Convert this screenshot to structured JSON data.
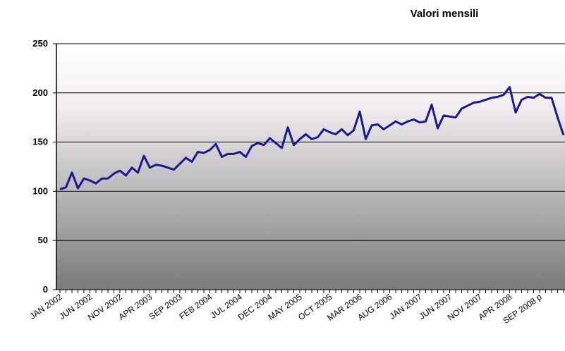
{
  "chart_data": {
    "type": "line",
    "title": "Valori mensili",
    "categories": [
      "JAN 2002",
      null,
      null,
      null,
      null,
      "JUN 2002",
      null,
      null,
      null,
      null,
      "NOV 2002",
      null,
      null,
      null,
      null,
      "APR 2003",
      null,
      null,
      null,
      null,
      "SEP 2003",
      null,
      null,
      null,
      null,
      "FEB 2004",
      null,
      null,
      null,
      null,
      "JUL 2004",
      null,
      null,
      null,
      null,
      "DEC 2004",
      null,
      null,
      null,
      null,
      "MAY 2005",
      null,
      null,
      null,
      null,
      "OCT 2005",
      null,
      null,
      null,
      null,
      "MAR 2006",
      null,
      null,
      null,
      null,
      "AUG 2006",
      null,
      null,
      null,
      null,
      "JAN 2007",
      null,
      null,
      null,
      null,
      "JUN 2007",
      null,
      null,
      null,
      null,
      "NOV 2007",
      null,
      null,
      null,
      null,
      "APR 2008",
      null,
      null,
      null,
      null,
      "SEP 2008 p",
      null,
      null,
      null,
      null
    ],
    "series": [
      {
        "color": "#1a1a8c",
        "values": [
          102,
          104,
          119,
          103,
          113,
          111,
          108,
          113,
          113,
          118,
          121,
          116,
          124,
          119,
          136,
          124,
          127,
          126,
          124,
          122,
          128,
          134,
          130,
          140,
          139,
          142,
          148,
          135,
          138,
          138,
          140,
          135,
          146,
          149,
          147,
          154,
          149,
          144,
          165,
          147,
          153,
          158,
          153,
          155,
          163,
          160,
          158,
          163,
          157,
          162,
          181,
          153,
          167,
          168,
          163,
          167,
          171,
          168,
          171,
          173,
          170,
          171,
          188,
          164,
          177,
          176,
          175,
          184,
          187,
          190,
          191,
          193,
          195,
          196,
          198,
          206,
          180,
          193,
          196,
          195,
          199,
          195,
          195,
          175,
          157
        ]
      }
    ],
    "ylim": [
      0,
      250
    ],
    "yticks": [
      0,
      50,
      100,
      150,
      200,
      250
    ],
    "grid": true
  }
}
